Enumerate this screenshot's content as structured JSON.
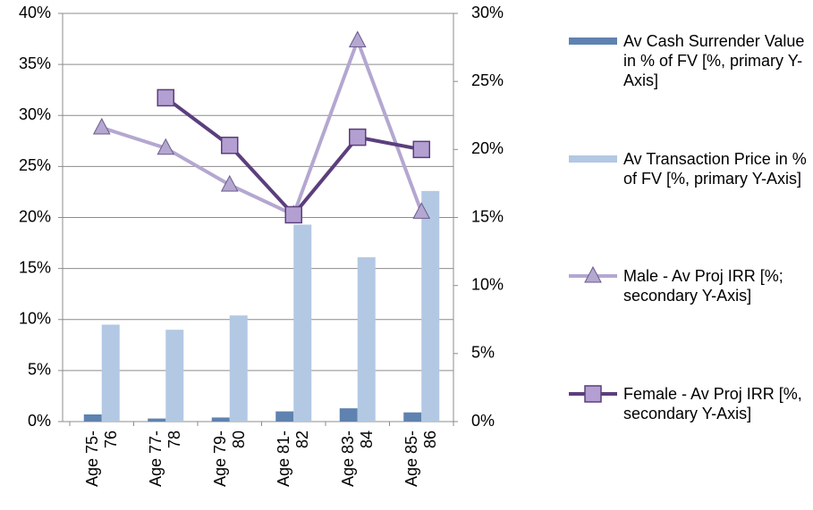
{
  "chart_data": {
    "type": "bar-line",
    "categories": [
      "Age 75-76",
      "Age 77-78",
      "Age 79-80",
      "Age 81-82",
      "Age 83-84",
      "Age 85-86"
    ],
    "series": [
      {
        "name": "Av Cash Surrender Value in % of FV [%, primary Y-Axis]",
        "type": "bar",
        "color": "#5f82b0",
        "values": [
          0.7,
          0.3,
          0.4,
          1.0,
          1.3,
          0.9
        ]
      },
      {
        "name": "Av Transaction Price in % of FV [%, primary Y-Axis]",
        "type": "bar",
        "color": "#b3c8e3",
        "values": [
          9.5,
          9.0,
          10.4,
          19.3,
          16.1,
          22.6
        ]
      },
      {
        "name": "Male - Av Proj IRR [%; secondary Y-Axis]",
        "type": "line",
        "axis": "y2",
        "marker": "triangle",
        "color": "#b4a7d0",
        "values": [
          21.6,
          20.1,
          17.4,
          15.2,
          28.0,
          15.4
        ]
      },
      {
        "name": "Female - Av Proj IRR [%, secondary Y-Axis]",
        "type": "line",
        "axis": "y2",
        "marker": "square",
        "color": "#5b3f7c",
        "values": [
          null,
          23.8,
          20.3,
          15.2,
          20.9,
          20.0
        ]
      }
    ],
    "ylim": [
      0,
      40
    ],
    "yticks": [
      {
        "value": 0,
        "label": "0%"
      },
      {
        "value": 5,
        "label": "5%"
      },
      {
        "value": 10,
        "label": "10%"
      },
      {
        "value": 15,
        "label": "15%"
      },
      {
        "value": 20,
        "label": "20%"
      },
      {
        "value": 25,
        "label": "25%"
      },
      {
        "value": 30,
        "label": "30%"
      },
      {
        "value": 35,
        "label": "35%"
      },
      {
        "value": 40,
        "label": "40%"
      }
    ],
    "y2lim": [
      0,
      30
    ],
    "y2ticks": [
      {
        "value": 0,
        "label": "0%"
      },
      {
        "value": 5,
        "label": "5%"
      },
      {
        "value": 10,
        "label": "10%"
      },
      {
        "value": 15,
        "label": "15%"
      },
      {
        "value": 20,
        "label": "20%"
      },
      {
        "value": 25,
        "label": "25%"
      },
      {
        "value": 30,
        "label": "30%"
      }
    ],
    "grid": true,
    "legend": "right"
  }
}
